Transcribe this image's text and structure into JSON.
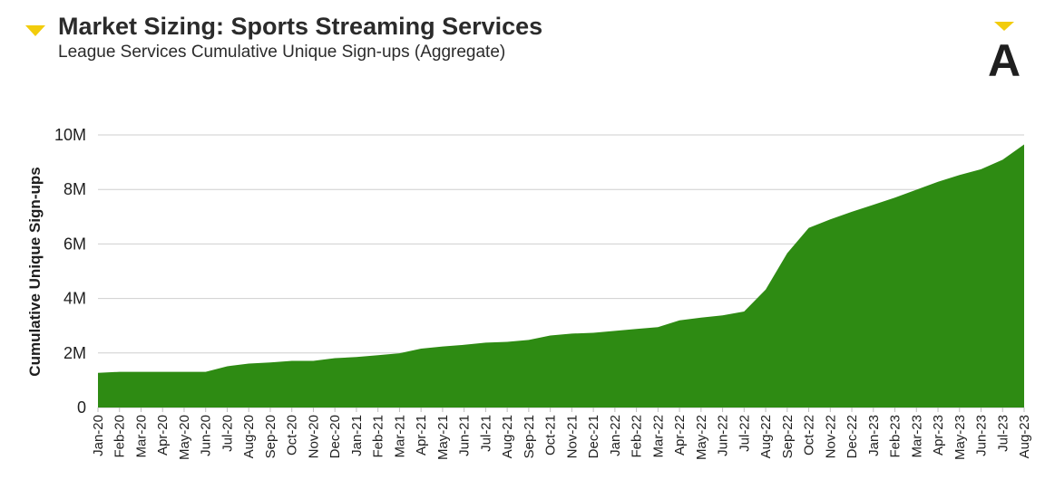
{
  "header": {
    "title": "Market Sizing: Sports Streaming Services",
    "subtitle": "League Services Cumulative Unique Sign-ups (Aggregate)",
    "accent_color": "#f2cc0c",
    "logo_letter": "A"
  },
  "chart_data": {
    "type": "area",
    "title": "Market Sizing: Sports Streaming Services",
    "subtitle": "League Services Cumulative Unique Sign-ups (Aggregate)",
    "xlabel": "",
    "ylabel": "Cumulative Unique Sign-ups",
    "ylim": [
      0,
      10000000
    ],
    "yticks": [
      0,
      2000000,
      4000000,
      6000000,
      8000000,
      10000000
    ],
    "ytick_labels": [
      "0",
      "2M",
      "4M",
      "6M",
      "8M",
      "10M"
    ],
    "grid": "horizontal",
    "color": "#2e8b13",
    "categories": [
      "Jan-20",
      "Feb-20",
      "Mar-20",
      "Apr-20",
      "May-20",
      "Jun-20",
      "Jul-20",
      "Aug-20",
      "Sep-20",
      "Oct-20",
      "Nov-20",
      "Dec-20",
      "Jan-21",
      "Feb-21",
      "Mar-21",
      "Apr-21",
      "May-21",
      "Jun-21",
      "Jul-21",
      "Aug-21",
      "Sep-21",
      "Oct-21",
      "Nov-21",
      "Dec-21",
      "Jan-22",
      "Feb-22",
      "Mar-22",
      "Apr-22",
      "May-22",
      "Jun-22",
      "Jul-22",
      "Aug-22",
      "Sep-22",
      "Oct-22",
      "Nov-22",
      "Dec-22",
      "Jan-23",
      "Feb-23",
      "Mar-23",
      "Apr-23",
      "May-23",
      "Jun-23",
      "Jul-23",
      "Aug-23"
    ],
    "values": [
      1270000,
      1310000,
      1310000,
      1310000,
      1310000,
      1310000,
      1510000,
      1610000,
      1650000,
      1710000,
      1710000,
      1810000,
      1850000,
      1920000,
      1990000,
      2160000,
      2240000,
      2300000,
      2380000,
      2410000,
      2480000,
      2640000,
      2710000,
      2740000,
      2810000,
      2880000,
      2950000,
      3200000,
      3300000,
      3380000,
      3520000,
      4330000,
      5660000,
      6590000,
      6900000,
      7180000,
      7440000,
      7700000,
      7990000,
      8280000,
      8530000,
      8740000,
      9090000,
      9650000
    ]
  }
}
